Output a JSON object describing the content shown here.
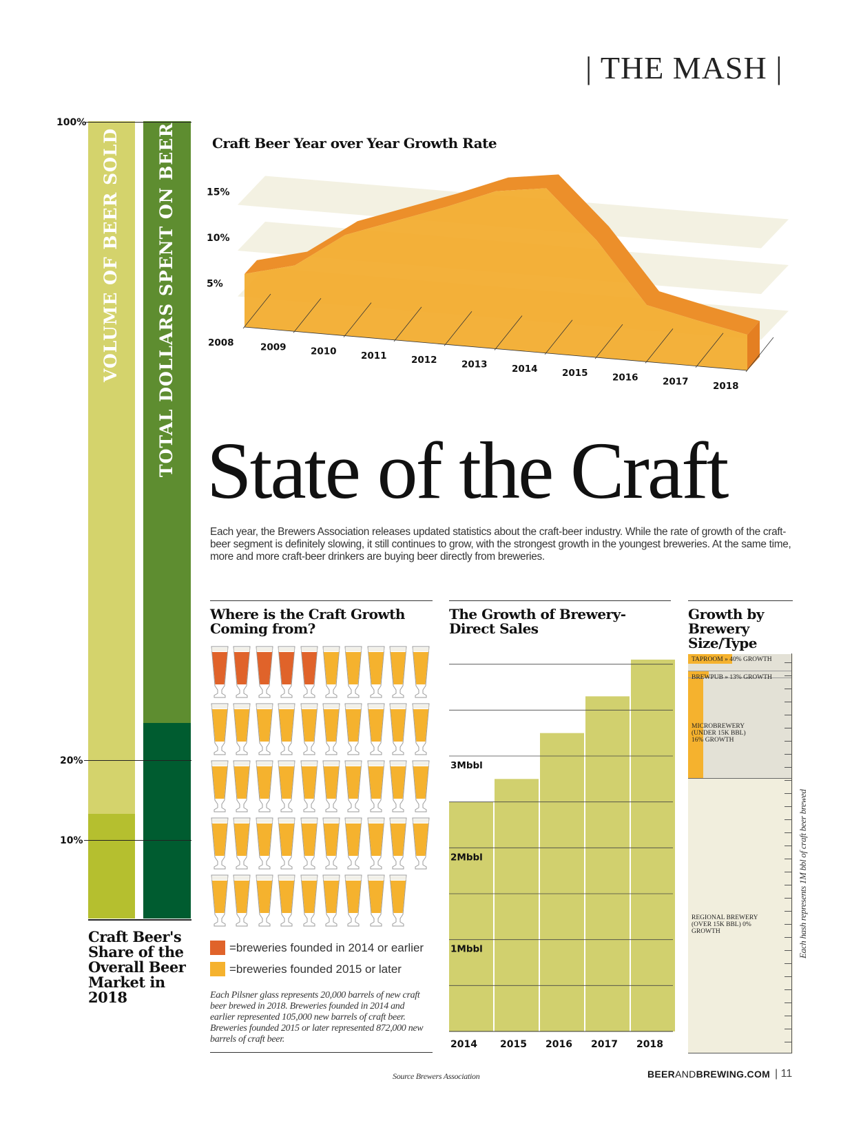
{
  "header": {
    "section": "| THE MASH |"
  },
  "share_chart": {
    "ticks": [
      "100%",
      "20%",
      "10%"
    ],
    "bar1_label": "VOLUME OF BEER SOLD",
    "bar2_label": "TOTAL DOLLARS SPENT ON BEER",
    "caption": "Craft Beer's Share of the Overall Beer Market in 2018",
    "colors": {
      "volume_light": "#d4d36c",
      "volume_dark": "#b5bf2f",
      "dollars_light": "#5e8d30",
      "dollars_dark": "#005c30"
    }
  },
  "title": "State of the Craft",
  "intro": "Each year, the Brewers Association releases updated statistics about the craft-beer industry. While the rate of growth of the craft-beer segment is definitely slowing, it still continues to grow, with the strongest growth in the youngest breweries. At the same time, more and more craft-beer drinkers are buying beer directly from breweries.",
  "growth_section": {
    "heading": "Where is the Craft Growth Coming from?",
    "legend": [
      "=breweries founded in 2014 or earlier",
      "=breweries founded 2015 or later"
    ],
    "note": "Each Pilsner glass represents 20,000 barrels of new craft beer brewed in 2018. Breweries founded in 2014 and earlier represented 105,000 new barrels of craft beer. Breweries founded 2015 or later represented 872,000 new barrels of craft beer.",
    "colors": {
      "older": "#e0632a",
      "newer": "#f5b22e"
    }
  },
  "direct_section": {
    "heading": "The Growth of Brewery-Direct Sales"
  },
  "size_section": {
    "heading": "Growth by Brewery Size/Type",
    "side_note": "Each hash represents 1M bbl of craft beer brewed",
    "labels": [
      "TAPROOM » 40% GROWTH",
      "BREWPUB » 13% GROWTH",
      "MICROBREWERY (UNDER 15K BBL) 16% GROWTH",
      "REGIONAL BREWERY (OVER 15K BBL) 0% GROWTH"
    ]
  },
  "chart_data": [
    {
      "type": "bar",
      "title": "Craft Beer's Share of the Overall Beer Market in 2018",
      "categories": [
        "Volume of Beer Sold",
        "Total Dollars Spent on Beer"
      ],
      "values": [
        13.2,
        24.1
      ],
      "unit": "%",
      "ylim": [
        0,
        100
      ]
    },
    {
      "type": "area",
      "title": "Craft Beer Year over Year Growth Rate",
      "x": [
        "2008",
        "2009",
        "2010",
        "2011",
        "2012",
        "2013",
        "2014",
        "2015",
        "2016",
        "2017",
        "2018"
      ],
      "values": [
        5.8,
        7.2,
        11.0,
        13.0,
        15.0,
        17.2,
        18.0,
        12.8,
        6.2,
        5.0,
        3.9
      ],
      "yticks": [
        "5%",
        "10%",
        "15%"
      ],
      "ylim": [
        0,
        18
      ]
    },
    {
      "type": "bar",
      "title": "Where is the Craft Growth Coming from?",
      "categories": [
        "breweries founded in 2014 or earlier",
        "breweries founded 2015 or later"
      ],
      "values": [
        105000,
        872000
      ],
      "unit": "barrels",
      "glass_counts": [
        5,
        44
      ]
    },
    {
      "type": "bar",
      "title": "The Growth of Brewery-Direct Sales",
      "categories": [
        "2014",
        "2015",
        "2016",
        "2017",
        "2018"
      ],
      "values": [
        2.5,
        2.75,
        3.25,
        3.65,
        4.05
      ],
      "yticks": [
        "1Mbbl",
        "2Mbbl",
        "3Mbbl"
      ],
      "unit": "Mbbl",
      "ylim": [
        0,
        4.2
      ],
      "color": "#d1d06e"
    },
    {
      "type": "bar",
      "title": "Growth by Brewery Size/Type",
      "categories": [
        "Taproom",
        "Brewpub",
        "Microbrewery",
        "Regional Brewery"
      ],
      "values": [
        40,
        13,
        16,
        0
      ],
      "unit": "% growth"
    }
  ],
  "footer": {
    "source": "Source Brewers Association",
    "site_a": "BEER",
    "site_b": "AND",
    "site_c": "BREWING.COM",
    "page": "| 11"
  }
}
